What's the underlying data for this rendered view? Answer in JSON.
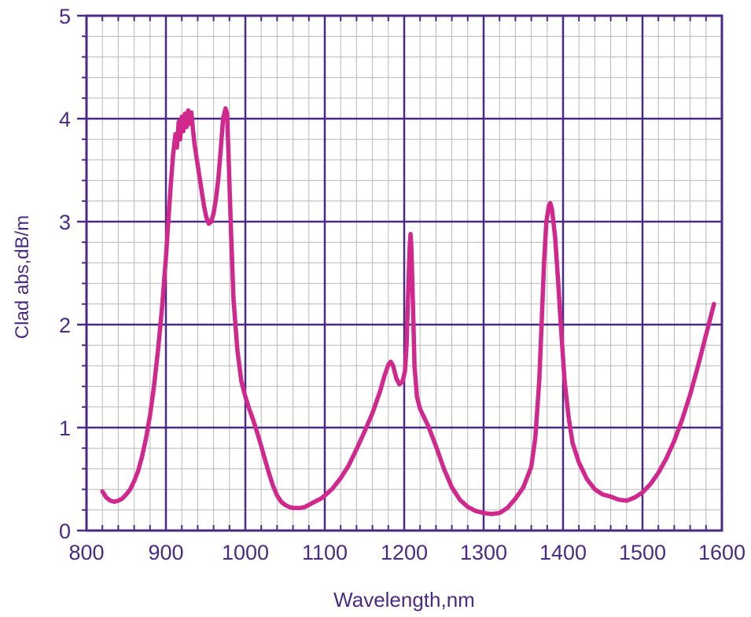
{
  "chart_data": {
    "type": "line",
    "title": "",
    "xlabel": "Wavelength,nm",
    "ylabel": "Clad abs,dB/m",
    "xlim": [
      800,
      1600
    ],
    "ylim": [
      0,
      5
    ],
    "x_ticks": [
      800,
      900,
      1000,
      1100,
      1200,
      1300,
      1400,
      1500,
      1600
    ],
    "x_tick_labels": [
      "800",
      "900",
      "1000",
      "1100",
      "1200",
      "1300",
      "1400",
      "1500",
      "1600"
    ],
    "y_ticks": [
      0,
      1,
      2,
      3,
      4,
      5
    ],
    "y_tick_labels": [
      "0",
      "1",
      "2",
      "3",
      "4",
      "5"
    ],
    "grid": true,
    "minor_grid": {
      "x_step": 20,
      "y_step": 0.2
    },
    "legend": "none",
    "colors": {
      "series": "#d0288c",
      "frame": "#4b2a83",
      "major_grid": "#4b2a83",
      "minor_grid": "#b8b8b8",
      "text": "#4b2a83"
    },
    "series": [
      {
        "points": [
          [
            820,
            0.38
          ],
          [
            825,
            0.32
          ],
          [
            830,
            0.29
          ],
          [
            835,
            0.28
          ],
          [
            840,
            0.29
          ],
          [
            845,
            0.31
          ],
          [
            850,
            0.35
          ],
          [
            855,
            0.4
          ],
          [
            860,
            0.48
          ],
          [
            865,
            0.58
          ],
          [
            870,
            0.72
          ],
          [
            875,
            0.9
          ],
          [
            880,
            1.12
          ],
          [
            885,
            1.4
          ],
          [
            890,
            1.75
          ],
          [
            895,
            2.15
          ],
          [
            900,
            2.65
          ],
          [
            903,
            3.0
          ],
          [
            906,
            3.35
          ],
          [
            909,
            3.65
          ],
          [
            912,
            3.85
          ],
          [
            914,
            3.72
          ],
          [
            916,
            3.97
          ],
          [
            918,
            3.8
          ],
          [
            920,
            4.02
          ],
          [
            922,
            3.88
          ],
          [
            924,
            4.05
          ],
          [
            926,
            3.92
          ],
          [
            928,
            4.08
          ],
          [
            930,
            3.95
          ],
          [
            932,
            4.06
          ],
          [
            934,
            3.9
          ],
          [
            936,
            3.75
          ],
          [
            939,
            3.6
          ],
          [
            942,
            3.45
          ],
          [
            945,
            3.3
          ],
          [
            948,
            3.15
          ],
          [
            951,
            3.04
          ],
          [
            954,
            2.98
          ],
          [
            957,
            3.0
          ],
          [
            960,
            3.08
          ],
          [
            963,
            3.22
          ],
          [
            966,
            3.42
          ],
          [
            969,
            3.7
          ],
          [
            972,
            4.0
          ],
          [
            975,
            4.1
          ],
          [
            977,
            4.05
          ],
          [
            979,
            3.6
          ],
          [
            982,
            2.9
          ],
          [
            985,
            2.25
          ],
          [
            990,
            1.75
          ],
          [
            995,
            1.45
          ],
          [
            1000,
            1.3
          ],
          [
            1005,
            1.18
          ],
          [
            1010,
            1.07
          ],
          [
            1015,
            0.95
          ],
          [
            1020,
            0.82
          ],
          [
            1025,
            0.68
          ],
          [
            1030,
            0.55
          ],
          [
            1035,
            0.43
          ],
          [
            1040,
            0.34
          ],
          [
            1045,
            0.28
          ],
          [
            1050,
            0.25
          ],
          [
            1055,
            0.23
          ],
          [
            1060,
            0.22
          ],
          [
            1065,
            0.22
          ],
          [
            1070,
            0.22
          ],
          [
            1075,
            0.23
          ],
          [
            1080,
            0.25
          ],
          [
            1085,
            0.27
          ],
          [
            1090,
            0.29
          ],
          [
            1095,
            0.31
          ],
          [
            1100,
            0.34
          ],
          [
            1110,
            0.41
          ],
          [
            1120,
            0.51
          ],
          [
            1130,
            0.63
          ],
          [
            1140,
            0.79
          ],
          [
            1150,
            0.96
          ],
          [
            1160,
            1.14
          ],
          [
            1170,
            1.36
          ],
          [
            1175,
            1.5
          ],
          [
            1180,
            1.61
          ],
          [
            1183,
            1.64
          ],
          [
            1186,
            1.6
          ],
          [
            1190,
            1.48
          ],
          [
            1194,
            1.42
          ],
          [
            1198,
            1.45
          ],
          [
            1201,
            1.55
          ],
          [
            1203,
            1.8
          ],
          [
            1205,
            2.3
          ],
          [
            1207,
            2.78
          ],
          [
            1208,
            2.88
          ],
          [
            1209,
            2.75
          ],
          [
            1211,
            2.2
          ],
          [
            1213,
            1.6
          ],
          [
            1216,
            1.3
          ],
          [
            1220,
            1.18
          ],
          [
            1230,
            1.02
          ],
          [
            1240,
            0.82
          ],
          [
            1250,
            0.6
          ],
          [
            1260,
            0.42
          ],
          [
            1270,
            0.3
          ],
          [
            1280,
            0.23
          ],
          [
            1290,
            0.19
          ],
          [
            1300,
            0.17
          ],
          [
            1310,
            0.16
          ],
          [
            1320,
            0.17
          ],
          [
            1330,
            0.22
          ],
          [
            1340,
            0.31
          ],
          [
            1350,
            0.42
          ],
          [
            1360,
            0.62
          ],
          [
            1365,
            0.9
          ],
          [
            1370,
            1.45
          ],
          [
            1373,
            2.0
          ],
          [
            1376,
            2.6
          ],
          [
            1379,
            3.0
          ],
          [
            1382,
            3.15
          ],
          [
            1384,
            3.18
          ],
          [
            1386,
            3.12
          ],
          [
            1390,
            2.85
          ],
          [
            1394,
            2.4
          ],
          [
            1398,
            1.9
          ],
          [
            1402,
            1.45
          ],
          [
            1407,
            1.1
          ],
          [
            1412,
            0.85
          ],
          [
            1420,
            0.66
          ],
          [
            1430,
            0.5
          ],
          [
            1440,
            0.4
          ],
          [
            1450,
            0.35
          ],
          [
            1460,
            0.33
          ],
          [
            1470,
            0.3
          ],
          [
            1480,
            0.29
          ],
          [
            1490,
            0.32
          ],
          [
            1500,
            0.37
          ],
          [
            1510,
            0.45
          ],
          [
            1520,
            0.56
          ],
          [
            1530,
            0.7
          ],
          [
            1540,
            0.87
          ],
          [
            1550,
            1.08
          ],
          [
            1560,
            1.32
          ],
          [
            1570,
            1.6
          ],
          [
            1580,
            1.9
          ],
          [
            1590,
            2.2
          ]
        ]
      }
    ]
  }
}
